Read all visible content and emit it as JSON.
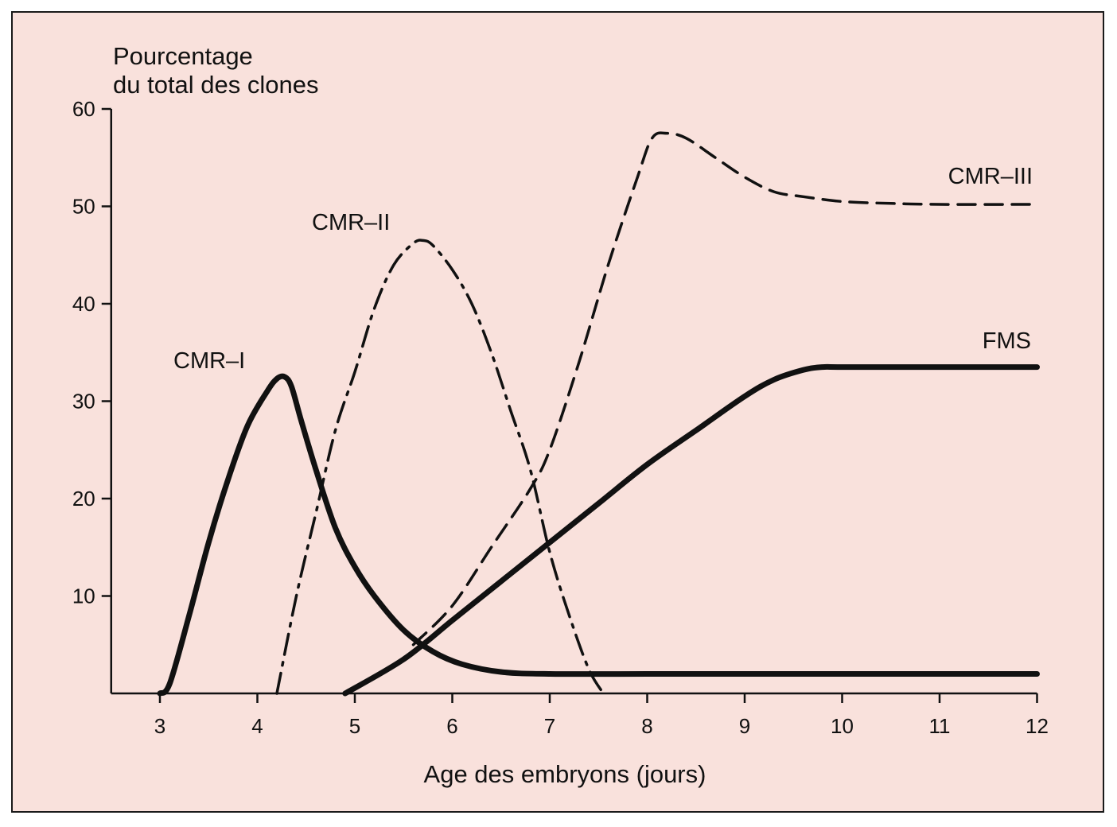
{
  "chart_data": {
    "type": "line",
    "ylabel": [
      "Pourcentage",
      "du total des clones"
    ],
    "xlabel": "Age des embryons (jours)",
    "xlim": [
      2.5,
      12
    ],
    "ylim": [
      0,
      60
    ],
    "xticks": [
      "3",
      "4",
      "5",
      "6",
      "7",
      "8",
      "9",
      "10",
      "11",
      "12"
    ],
    "yticks": [
      "10",
      "20",
      "30",
      "40",
      "50",
      "60"
    ],
    "grid": false,
    "series": [
      {
        "name": "CMR–I",
        "style": "solid-thick",
        "x": [
          3.0,
          3.1,
          3.3,
          3.5,
          3.7,
          3.9,
          4.1,
          4.2,
          4.28,
          4.35,
          4.45,
          4.6,
          4.8,
          5.0,
          5.2,
          5.5,
          5.8,
          6.1,
          6.5,
          7.0,
          8.0,
          9.0,
          10.0,
          11.0,
          12.0
        ],
        "y": [
          0,
          1,
          8,
          15.5,
          22,
          27.5,
          31,
          32.3,
          32.5,
          31.5,
          28,
          23,
          17,
          13,
          10,
          6.5,
          4.3,
          3,
          2.2,
          2,
          2,
          2,
          2,
          2,
          2
        ]
      },
      {
        "name": "CMR–II",
        "style": "dash-dot",
        "x": [
          4.2,
          4.4,
          4.6,
          4.8,
          5.0,
          5.2,
          5.4,
          5.6,
          5.7,
          5.8,
          6.0,
          6.2,
          6.4,
          6.6,
          6.8,
          7.0,
          7.2,
          7.4,
          7.55
        ],
        "y": [
          0,
          10,
          18.5,
          27,
          33,
          39.5,
          44,
          46.2,
          46.5,
          46,
          43.5,
          40,
          35,
          29,
          23,
          14.5,
          8,
          2.5,
          0
        ]
      },
      {
        "name": "CMR–III",
        "style": "dashed",
        "x": [
          5.6,
          6.0,
          6.4,
          6.8,
          7.0,
          7.3,
          7.6,
          7.9,
          8.05,
          8.2,
          8.4,
          8.7,
          9.0,
          9.3,
          9.6,
          10.0,
          10.5,
          11.0,
          12.0
        ],
        "y": [
          5,
          9,
          15,
          21,
          25,
          34,
          44,
          53,
          57,
          57.5,
          57,
          55,
          53,
          51.5,
          51,
          50.5,
          50.3,
          50.2,
          50.2
        ]
      },
      {
        "name": "FMS",
        "style": "solid-thick",
        "x": [
          4.9,
          5.5,
          6.0,
          6.5,
          7.0,
          7.5,
          8.0,
          8.5,
          9.0,
          9.3,
          9.6,
          9.8,
          10.0,
          11.0,
          12.0
        ],
        "y": [
          0,
          3.5,
          7.5,
          11.5,
          15.5,
          19.5,
          23.5,
          27,
          30.5,
          32.2,
          33.2,
          33.5,
          33.5,
          33.5,
          33.5
        ]
      }
    ]
  },
  "colors": {
    "background": "#f9e1dc",
    "ink": "#111111"
  }
}
